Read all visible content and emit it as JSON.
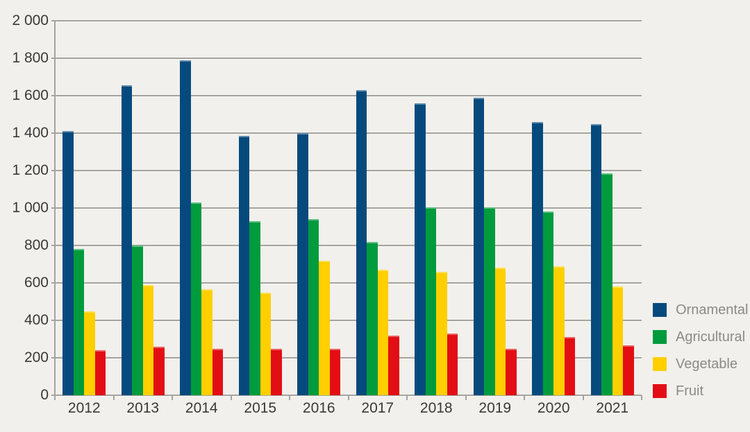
{
  "chart_data": {
    "type": "bar",
    "title": "",
    "categories": [
      "2012",
      "2013",
      "2014",
      "2015",
      "2016",
      "2017",
      "2018",
      "2019",
      "2020",
      "2021"
    ],
    "series": [
      {
        "name": "Ornamental",
        "color": "#064a7d",
        "values": [
          1410,
          1655,
          1790,
          1385,
          1400,
          1630,
          1560,
          1590,
          1460,
          1450
        ]
      },
      {
        "name": "Agricultural",
        "color": "#009b3d",
        "values": [
          780,
          800,
          1030,
          930,
          940,
          820,
          1005,
          1005,
          980,
          1185
        ]
      },
      {
        "name": "Vegetable",
        "color": "#ffcf00",
        "values": [
          450,
          590,
          565,
          550,
          720,
          670,
          660,
          680,
          690,
          580
        ]
      },
      {
        "name": "Fruit",
        "color": "#e20e14",
        "values": [
          240,
          260,
          250,
          250,
          250,
          320,
          330,
          250,
          310,
          265
        ]
      }
    ],
    "ylim": [
      0,
      2000
    ],
    "ytick_step": 200,
    "ytick_labels": [
      "0",
      "200",
      "400",
      "600",
      "800",
      "1 000",
      "1 200",
      "1 400",
      "1 600",
      "1 800",
      "2 000"
    ],
    "grid": true,
    "legend_position": "right",
    "colors": {
      "background": "#f1f0ec",
      "gridline": "#a5a39e",
      "axis_text": "#3a3938",
      "legend_text": "#8c8a84"
    }
  }
}
